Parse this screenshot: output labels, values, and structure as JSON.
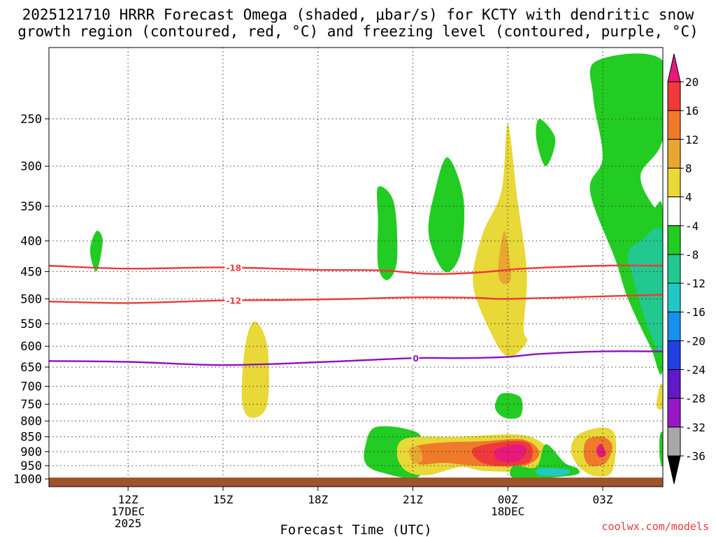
{
  "chart_data": {
    "type": "heatmap",
    "title_line1": "2025121710 HRRR Forecast Omega (shaded, μbar/s) for KCTY with dendritic snow",
    "title_line2": "growth region (contoured, red, °C) and freezing level (contoured, purple, °C)",
    "xlabel": "Forecast Time (UTC)",
    "x_range_hours": [
      9.5,
      4.8
    ],
    "y_range_hPa": [
      1030,
      190
    ],
    "x_ticks": [
      {
        "label": "12Z",
        "sub1": "17DEC",
        "sub2": "2025",
        "hour": 12
      },
      {
        "label": "15Z",
        "sub1": "",
        "sub2": "",
        "hour": 15
      },
      {
        "label": "18Z",
        "sub1": "",
        "sub2": "",
        "hour": 18
      },
      {
        "label": "21Z",
        "sub1": "",
        "sub2": "",
        "hour": 21
      },
      {
        "label": "00Z",
        "sub1": "18DEC",
        "sub2": "",
        "hour": 24
      },
      {
        "label": "03Z",
        "sub1": "",
        "sub2": "",
        "hour": 27
      }
    ],
    "y_ticks": [
      250,
      300,
      350,
      400,
      450,
      500,
      550,
      600,
      650,
      700,
      750,
      800,
      850,
      900,
      950,
      1000
    ],
    "colorbar": {
      "labels": [
        "20",
        "16",
        "12",
        "8",
        "4",
        "-4",
        "-8",
        "-12",
        "-16",
        "-20",
        "-24",
        "-28",
        "-32",
        "-36"
      ],
      "colors": [
        "#e8197a",
        "#ee3a3a",
        "#ee7a2a",
        "#e8a830",
        "#e8d838",
        "#ffffff",
        "#22cc22",
        "#22c890",
        "#22c8c8",
        "#1890ee",
        "#2040e0",
        "#6018c8",
        "#9818c8",
        "#a8a8a8",
        "#000000"
      ]
    },
    "contours": [
      {
        "label": "-18",
        "color": "#ee3a3a",
        "label_hour": 15.1,
        "points": [
          [
            9.5,
            440
          ],
          [
            12,
            445
          ],
          [
            15,
            443
          ],
          [
            18,
            447
          ],
          [
            20,
            448
          ],
          [
            21.5,
            454
          ],
          [
            23,
            452
          ],
          [
            24.5,
            445
          ],
          [
            27,
            440
          ],
          [
            28.9,
            440
          ]
        ]
      },
      {
        "label": "-12",
        "color": "#ee3a3a",
        "label_hour": 15.1,
        "points": [
          [
            9.5,
            505
          ],
          [
            12,
            508
          ],
          [
            15,
            503
          ],
          [
            17,
            502
          ],
          [
            19,
            500
          ],
          [
            21,
            497
          ],
          [
            23,
            498
          ],
          [
            24,
            500
          ],
          [
            27,
            495
          ],
          [
            28.9,
            492
          ]
        ]
      },
      {
        "label": "0",
        "color": "#9010c0",
        "label_hour": 21.0,
        "points": [
          [
            9.5,
            635
          ],
          [
            12,
            637
          ],
          [
            15,
            645
          ],
          [
            18,
            638
          ],
          [
            21,
            628
          ],
          [
            22.5,
            628
          ],
          [
            24,
            625
          ],
          [
            25,
            618
          ],
          [
            27,
            612
          ],
          [
            28.9,
            612
          ]
        ]
      }
    ],
    "omega_regions": [
      {
        "color": "#22cc22",
        "points": [
          [
            11,
            385
          ],
          [
            11.2,
            400
          ],
          [
            11,
            450
          ],
          [
            10.8,
            415
          ]
        ]
      },
      {
        "color": "#e8d838",
        "points": [
          [
            16,
            545
          ],
          [
            16.4,
            600
          ],
          [
            16.4,
            750
          ],
          [
            15.9,
            790
          ],
          [
            15.6,
            740
          ],
          [
            15.7,
            600
          ]
        ]
      },
      {
        "color": "#22cc22",
        "points": [
          [
            19.9,
            325
          ],
          [
            20.4,
            345
          ],
          [
            20.5,
            430
          ],
          [
            20.2,
            465
          ],
          [
            19.9,
            440
          ],
          [
            19.9,
            370
          ]
        ]
      },
      {
        "color": "#22cc22",
        "points": [
          [
            22.1,
            290
          ],
          [
            22.6,
            340
          ],
          [
            22.5,
            420
          ],
          [
            22,
            450
          ],
          [
            21.5,
            390
          ],
          [
            21.7,
            330
          ]
        ]
      },
      {
        "color": "#e8d838",
        "points": [
          [
            24,
            255
          ],
          [
            24.3,
            340
          ],
          [
            24.6,
            450
          ],
          [
            24.5,
            560
          ],
          [
            24.6,
            590
          ],
          [
            24,
            625
          ],
          [
            23.4,
            560
          ],
          [
            22.9,
            470
          ],
          [
            23.2,
            390
          ],
          [
            23.8,
            330
          ]
        ]
      },
      {
        "color": "#e8a830",
        "points": [
          [
            23.9,
            385
          ],
          [
            24.1,
            460
          ],
          [
            23.8,
            470
          ],
          [
            23.7,
            440
          ]
        ]
      },
      {
        "color": "#22cc22",
        "points": [
          [
            25,
            250
          ],
          [
            25.5,
            270
          ],
          [
            25.2,
            300
          ],
          [
            24.9,
            270
          ]
        ]
      },
      {
        "color": "#22cc22",
        "points": [
          [
            23.8,
            720
          ],
          [
            24.4,
            730
          ],
          [
            24.4,
            785
          ],
          [
            23.9,
            790
          ],
          [
            23.6,
            760
          ]
        ]
      },
      {
        "color": "#22cc22",
        "points": [
          [
            26.8,
            200
          ],
          [
            28.9,
            200
          ],
          [
            28.9,
            270
          ],
          [
            28.2,
            310
          ],
          [
            28.6,
            350
          ],
          [
            28.9,
            360
          ],
          [
            28.9,
            650
          ],
          [
            28.5,
            600
          ],
          [
            27.8,
            500
          ],
          [
            27.4,
            430
          ],
          [
            26.6,
            330
          ],
          [
            27,
            290
          ],
          [
            26.7,
            230
          ]
        ]
      },
      {
        "color": "#22c890",
        "points": [
          [
            28.9,
            390
          ],
          [
            28.9,
            600
          ],
          [
            28.5,
            570
          ],
          [
            28,
            470
          ],
          [
            27.8,
            420
          ],
          [
            28.2,
            400
          ]
        ]
      },
      {
        "color": "#e8d838",
        "points": [
          [
            28.8,
            700
          ],
          [
            28.9,
            700
          ],
          [
            28.9,
            760
          ],
          [
            28.7,
            755
          ]
        ]
      },
      {
        "color": "#22cc22",
        "points": [
          [
            28.9,
            840
          ],
          [
            28.9,
            950
          ],
          [
            28.8,
            920
          ],
          [
            28.8,
            850
          ]
        ]
      },
      {
        "color": "#22cc22",
        "points": [
          [
            19.8,
            820
          ],
          [
            20.8,
            825
          ],
          [
            21.3,
            860
          ],
          [
            21.2,
            990
          ],
          [
            20,
            975
          ],
          [
            19.5,
            940
          ],
          [
            19.5,
            880
          ]
        ]
      },
      {
        "color": "#e8d838",
        "points": [
          [
            20.8,
            855
          ],
          [
            22.5,
            850
          ],
          [
            24.5,
            845
          ],
          [
            25.3,
            900
          ],
          [
            24.8,
            965
          ],
          [
            23.3,
            970
          ],
          [
            22.5,
            955
          ],
          [
            21.5,
            985
          ],
          [
            20.8,
            970
          ],
          [
            20.5,
            910
          ]
        ]
      },
      {
        "color": "#ee7a2a",
        "points": [
          [
            21,
            885
          ],
          [
            21.8,
            870
          ],
          [
            23.2,
            865
          ],
          [
            24.5,
            860
          ],
          [
            25,
            905
          ],
          [
            24.5,
            950
          ],
          [
            23,
            950
          ],
          [
            22,
            940
          ],
          [
            21.2,
            945
          ],
          [
            21,
            915
          ]
        ]
      },
      {
        "color": "#ee3a3a",
        "points": [
          [
            22.9,
            890
          ],
          [
            24,
            865
          ],
          [
            24.7,
            875
          ],
          [
            24.7,
            935
          ],
          [
            24,
            950
          ],
          [
            23.2,
            940
          ]
        ]
      },
      {
        "color": "#e8197a",
        "points": [
          [
            23.6,
            895
          ],
          [
            24.3,
            875
          ],
          [
            24.6,
            895
          ],
          [
            24.3,
            935
          ],
          [
            23.7,
            930
          ]
        ]
      },
      {
        "color": "#e8a830",
        "points": [
          [
            20.9,
            890
          ],
          [
            21.2,
            885
          ],
          [
            21.3,
            930
          ],
          [
            21,
            940
          ]
        ]
      },
      {
        "color": "#22cc22",
        "points": [
          [
            24.2,
            950
          ],
          [
            24.9,
            955
          ],
          [
            25.2,
            875
          ],
          [
            25.8,
            940
          ],
          [
            26.2,
            960
          ],
          [
            26.1,
            985
          ],
          [
            24.6,
            1000
          ],
          [
            24.1,
            990
          ]
        ]
      },
      {
        "color": "#22c8c8",
        "points": [
          [
            25,
            960
          ],
          [
            25.9,
            965
          ],
          [
            25.8,
            985
          ],
          [
            25,
            985
          ]
        ]
      },
      {
        "color": "#e8d838",
        "points": [
          [
            26.2,
            845
          ],
          [
            27,
            820
          ],
          [
            27.4,
            850
          ],
          [
            27.3,
            970
          ],
          [
            26.8,
            990
          ],
          [
            26.3,
            960
          ],
          [
            26,
            900
          ]
        ]
      },
      {
        "color": "#ee7a2a",
        "points": [
          [
            26.5,
            860
          ],
          [
            27,
            850
          ],
          [
            27.3,
            880
          ],
          [
            27.1,
            940
          ],
          [
            26.6,
            950
          ],
          [
            26.4,
            910
          ]
        ]
      },
      {
        "color": "#e8197a",
        "points": [
          [
            26.9,
            875
          ],
          [
            27,
            880
          ],
          [
            27.1,
            910
          ],
          [
            26.9,
            920
          ],
          [
            26.8,
            895
          ]
        ]
      }
    ],
    "terrain_color": "#a0522d"
  },
  "credit": "coolwx.com/models"
}
